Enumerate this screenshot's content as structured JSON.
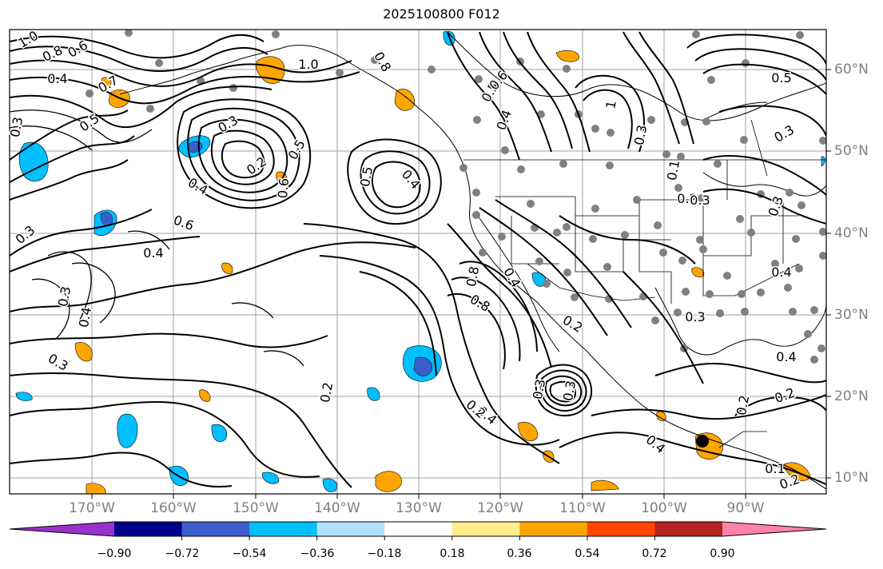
{
  "title": "2025100800 F012",
  "lat_labels": [
    "60°N",
    "50°N",
    "40°N",
    "30°N",
    "20°N",
    "10°N"
  ],
  "lon_labels": [
    "170°W",
    "160°W",
    "150°W",
    "140°W",
    "130°W",
    "120°W",
    "110°W",
    "100°W",
    "90°W"
  ],
  "colorbar": {
    "colors": [
      "#9932cc",
      "#00008b",
      "#3a5fcd",
      "#00bfff",
      "#b0e2ff",
      "#ffffff",
      "#ffec8b",
      "#ffa500",
      "#ff4500",
      "#b22222",
      "#ff82ab"
    ],
    "tick_labels": [
      "−0.90",
      "−0.72",
      "−0.54",
      "−0.36",
      "−0.18",
      "0.18",
      "0.36",
      "0.54",
      "0.72",
      "0.90"
    ]
  },
  "contour_labels": [
    "1.0",
    "0.8",
    "0.6",
    "0.4",
    "0.3",
    "0.5",
    "0.7",
    "0.3",
    "0.2",
    "0.4",
    "0.5",
    "0.6",
    "1.0",
    "0.8",
    "0.5",
    "0.4",
    "0.5",
    "0.3",
    "0.4",
    "0.3",
    "0.4",
    "0.6",
    "0.4",
    "0.3",
    "0.3",
    "0.2",
    "0.3",
    "0.8",
    "0.6",
    "0.2",
    "0.3",
    "0.4",
    "0.2",
    "0.4",
    "0.2",
    "0.2",
    "0.2",
    "0.1",
    "0.4",
    "0.2",
    "1",
    "0.5",
    "0.3",
    "0.4",
    "0.3",
    "0.1",
    "0.4",
    "0.3",
    "0.3",
    "0.8"
  ]
}
